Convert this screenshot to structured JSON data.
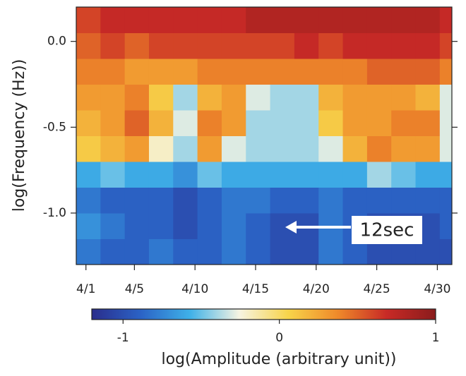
{
  "chart_data": {
    "type": "heatmap",
    "ylabel": "log(Frequency (Hz))",
    "x_bins": [
      0.2,
      2.2,
      4.2,
      6.2,
      8.2,
      10.2,
      12.2,
      14.2,
      16.2,
      18.2,
      20.2,
      22.2,
      24.2,
      26.2,
      28.2,
      30.2,
      31.2
    ],
    "y_bins": [
      -1.3,
      -1.15,
      -1.0,
      -0.85,
      -0.7,
      -0.55,
      -0.4,
      -0.25,
      -0.1,
      0.05,
      0.2
    ],
    "z": [
      [
        -0.8,
        -0.9,
        -0.9,
        -0.8,
        -0.9,
        -0.9,
        -0.8,
        -0.9,
        -1.0,
        -1.0,
        -0.8,
        -0.9,
        -1.0,
        -1.0,
        -1.0,
        -1.0
      ],
      [
        -0.7,
        -0.8,
        -0.9,
        -0.9,
        -1.0,
        -0.9,
        -0.8,
        -0.9,
        -1.0,
        -1.0,
        -0.8,
        -0.9,
        -1.0,
        -1.0,
        -1.0,
        -0.9
      ],
      [
        -0.8,
        -0.9,
        -0.9,
        -0.9,
        -1.0,
        -0.9,
        -0.8,
        -0.8,
        -0.9,
        -0.9,
        -0.8,
        -0.9,
        -0.9,
        -0.9,
        -0.9,
        -0.9
      ],
      [
        -0.6,
        -0.5,
        -0.6,
        -0.6,
        -0.7,
        -0.5,
        -0.6,
        -0.6,
        -0.6,
        -0.6,
        -0.6,
        -0.6,
        -0.4,
        -0.5,
        -0.6,
        -0.6
      ],
      [
        0.1,
        0.2,
        0.3,
        -0.2,
        -0.4,
        0.3,
        -0.3,
        -0.4,
        -0.4,
        -0.4,
        -0.3,
        0.2,
        0.4,
        0.3,
        0.3,
        -0.3
      ],
      [
        0.2,
        0.3,
        0.5,
        0.2,
        -0.3,
        0.4,
        0.3,
        -0.4,
        -0.4,
        -0.4,
        0.1,
        0.3,
        0.3,
        0.4,
        0.4,
        -0.3
      ],
      [
        0.3,
        0.3,
        0.4,
        0.1,
        -0.4,
        0.2,
        0.3,
        -0.3,
        -0.4,
        -0.4,
        0.2,
        0.3,
        0.3,
        0.3,
        0.2,
        -0.3
      ],
      [
        0.4,
        0.4,
        0.3,
        0.3,
        0.3,
        0.4,
        0.4,
        0.4,
        0.4,
        0.4,
        0.4,
        0.4,
        0.5,
        0.5,
        0.5,
        0.4
      ],
      [
        0.5,
        0.6,
        0.5,
        0.6,
        0.6,
        0.6,
        0.6,
        0.6,
        0.6,
        0.7,
        0.6,
        0.7,
        0.7,
        0.7,
        0.7,
        0.6
      ],
      [
        0.6,
        0.7,
        0.7,
        0.7,
        0.7,
        0.7,
        0.7,
        0.8,
        0.8,
        0.8,
        0.8,
        0.8,
        0.8,
        0.8,
        0.8,
        0.7
      ]
    ],
    "xlim": [
      0.2,
      31.2
    ],
    "xticks": [
      {
        "value": 1,
        "label": "4/1"
      },
      {
        "value": 5,
        "label": "4/5"
      },
      {
        "value": 10,
        "label": "4/10"
      },
      {
        "value": 15,
        "label": "4/15"
      },
      {
        "value": 20,
        "label": "4/20"
      },
      {
        "value": 25,
        "label": "4/25"
      },
      {
        "value": 30,
        "label": "4/30"
      }
    ],
    "ylim": [
      -1.3,
      0.2
    ],
    "yticks": [
      {
        "value": 0,
        "label": "0.0"
      },
      -0.5,
      {
        "value": -1,
        "label": "-1.0"
      }
    ],
    "colorbar": {
      "label": "log(Amplitude (arbitrary unit))",
      "lim": [
        -1.2,
        1.0
      ],
      "ticks": [
        -1,
        0,
        1
      ],
      "colormap": [
        "#2a2d8c",
        "#2b63c6",
        "#3fb1e8",
        "#f6f4e2",
        "#f7d44a",
        "#ef8a2a",
        "#c82a26",
        "#8a1c1c"
      ]
    },
    "annotations": [
      {
        "text": "12sec"
      }
    ]
  }
}
